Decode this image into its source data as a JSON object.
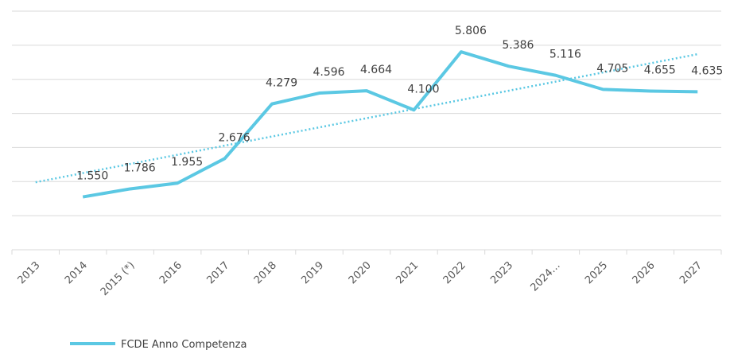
{
  "chart_data": {
    "type": "line",
    "categories": [
      "2013",
      "2014",
      "2015 (*)",
      "2016",
      "2017",
      "2018",
      "2019",
      "2020",
      "2021",
      "2022",
      "2023",
      "2024…",
      "2025",
      "2026",
      "2027"
    ],
    "series": [
      {
        "name": "FCDE Anno Competenza",
        "color": "#5bc8e3",
        "values": [
          null,
          1550,
          1786,
          1955,
          2676,
          4279,
          4596,
          4664,
          4100,
          5806,
          5386,
          5116,
          4705,
          4655,
          4635
        ],
        "value_labels": [
          null,
          "1.550",
          "1.786",
          "1.955",
          "2.676",
          "4.279",
          "4.596",
          "4.664",
          "4.100",
          "5.806",
          "5.386",
          "5.116",
          "4.705",
          "4.655",
          "4.635"
        ]
      }
    ],
    "trendline": "linear",
    "ylim": [
      0,
      7000
    ],
    "yticks": [
      0,
      1000,
      2000,
      3000,
      4000,
      5000,
      6000,
      7000
    ],
    "grid": true
  }
}
